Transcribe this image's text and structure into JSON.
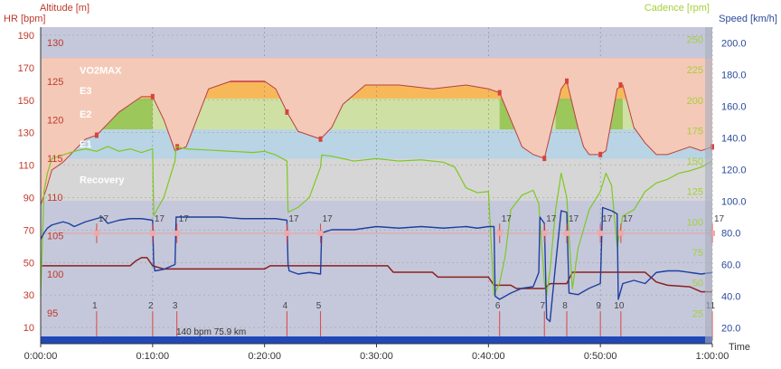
{
  "header": {
    "altitude_label": "Altitude [m]",
    "hr_label": "HR [bpm]",
    "cadence_label": "Cadence [rpm]",
    "speed_label": "Speed [km/h]",
    "time_label": "Time"
  },
  "summary_text": "140 bpm 75.9 km",
  "colors": {
    "hr": "#8b1f1f",
    "cadence": "#7ec820",
    "speed": "#1e3fa0",
    "altitude_fill": "#f4c9b8",
    "altitude_line": "#b94040",
    "hr_axis_text": "#c0392b",
    "cadence_axis_text": "#a6cf3a",
    "speed_axis_text": "#2a4a9a",
    "progress": "#2048b8"
  },
  "chart_data": {
    "type": "line",
    "x_unit": "h:mm:ss",
    "xlim": [
      "0:00:00",
      "1:00:00"
    ],
    "x_ticks": [
      "0:00:00",
      "0:10:00",
      "0:20:00",
      "0:30:00",
      "0:40:00",
      "0:50:00",
      "1:00:00"
    ],
    "axes": {
      "hr": {
        "label": "HR [bpm]",
        "ylim": [
          0,
          195
        ],
        "ticks": [
          "10",
          "30",
          "50",
          "70",
          "90",
          "110",
          "130",
          "150",
          "170",
          "190"
        ]
      },
      "altitude": {
        "label": "Altitude [m]",
        "ylim": [
          91,
          132
        ],
        "ticks": [
          "95",
          "100",
          "105",
          "110",
          "115",
          "120",
          "125",
          "130"
        ]
      },
      "cadence": {
        "label": "Cadence [rpm]",
        "ylim": [
          0,
          260
        ],
        "ticks": [
          "25",
          "50",
          "75",
          "100",
          "125",
          "150",
          "175",
          "200",
          "225",
          "250"
        ]
      },
      "speed": {
        "label": "Speed [km/h]",
        "ylim": [
          10,
          210
        ],
        "ticks": [
          "20.0",
          "40.0",
          "60.0",
          "80.0",
          "100.0",
          "120.0",
          "140.0",
          "160.0",
          "180.0",
          "200.0"
        ]
      }
    },
    "hr_zones": [
      {
        "name": "Recovery",
        "from": 88,
        "to": 114,
        "color": "#d6d6d6"
      },
      {
        "name": "E1",
        "from": 114,
        "to": 132,
        "color": "#b9d4e4"
      },
      {
        "name": "E2",
        "from": 132,
        "to": 151,
        "color": "#cfe0a4"
      },
      {
        "name": "E3",
        "from": 151,
        "to": 161,
        "color": "#f7b85a"
      },
      {
        "name": "VO2MAX",
        "from": 161,
        "to": 176,
        "color": "#e8584c"
      }
    ],
    "green_band": {
      "from": 132,
      "to": 151,
      "color": "#9cc75a",
      "segments": [
        [
          "0:01:00",
          "0:10:00"
        ],
        [
          "0:41:00",
          "0:44:30"
        ],
        [
          "0:46:00",
          "0:48:30"
        ],
        [
          "0:49:30",
          "0:52:00"
        ],
        [
          "0:53:00",
          "1:00:00"
        ]
      ]
    },
    "series": [
      {
        "name": "Altitude",
        "axis": "altitude",
        "x_minutes": [
          0,
          0.5,
          1,
          2,
          3,
          4,
          5,
          6,
          7,
          8,
          9,
          10,
          11,
          12,
          13,
          15,
          17,
          20,
          21,
          22,
          23,
          24,
          25,
          26,
          27,
          29,
          32,
          35,
          38,
          40,
          41,
          42,
          43,
          44,
          45,
          45.5,
          46,
          46.5,
          47,
          48,
          48.5,
          49,
          50,
          50.5,
          51,
          51.5,
          52,
          53,
          54,
          55,
          56,
          57,
          58,
          59,
          60
        ],
        "values": [
          109,
          111,
          113.5,
          114.5,
          116,
          117.5,
          118,
          119.5,
          121,
          122,
          123,
          123,
          120,
          116,
          116.5,
          124,
          125,
          125,
          124,
          121,
          118.5,
          118,
          117.5,
          119,
          122,
          124.5,
          124.5,
          124,
          124.5,
          124,
          123.5,
          120,
          116.5,
          115.5,
          115,
          118,
          121,
          124,
          125,
          119,
          116.5,
          115.5,
          115.5,
          116,
          120,
          124,
          124.5,
          119,
          117,
          115.5,
          115.5,
          116,
          116.5,
          116,
          116.5
        ]
      },
      {
        "name": "Speed",
        "axis": "speed",
        "x_minutes": [
          0,
          0.3,
          0.6,
          1,
          1.5,
          2,
          2.5,
          3,
          4,
          5,
          5.5,
          6,
          7,
          8,
          9,
          10,
          10.1,
          10.2,
          11,
          12,
          12.1,
          12.5,
          14,
          16,
          18,
          20,
          21,
          22,
          22.1,
          22.2,
          23,
          24,
          25,
          25.1,
          26,
          28,
          30,
          32,
          34,
          36,
          38,
          39,
          40,
          40.5,
          40.6,
          41,
          41.5,
          42,
          43,
          44,
          44.5,
          44.6,
          45,
          45.2,
          45.5,
          46,
          46.5,
          47,
          47.2,
          48,
          49,
          50,
          50.2,
          51,
          51.5,
          51.6,
          52,
          53,
          54,
          55,
          56,
          57,
          58,
          59,
          60
        ],
        "values": [
          76,
          80,
          83,
          85,
          86,
          87,
          86,
          84,
          87,
          89,
          90,
          86,
          88,
          89,
          89,
          88,
          60,
          56,
          57,
          60,
          90,
          90,
          90,
          90,
          89,
          89,
          89,
          88,
          60,
          56,
          54,
          55,
          54,
          80,
          82,
          82,
          84,
          83,
          84,
          83,
          84,
          83,
          84,
          84,
          40,
          38,
          40,
          42,
          45,
          46,
          55,
          90,
          86,
          26,
          24,
          60,
          94,
          93,
          42,
          41,
          45,
          48,
          96,
          94,
          92,
          38,
          48,
          50,
          48,
          55,
          56,
          56,
          55,
          54,
          55
        ]
      },
      {
        "name": "Cadence",
        "axis": "cadence",
        "x_minutes": [
          0,
          0.3,
          0.6,
          1,
          2,
          3,
          4,
          5,
          6,
          7,
          8,
          9,
          10,
          10.1,
          10.5,
          11,
          12,
          12.1,
          13,
          15,
          17,
          19,
          20,
          21,
          22,
          22.1,
          23,
          24,
          25,
          25.1,
          26,
          28,
          30,
          32,
          34,
          36,
          37,
          38,
          39,
          40,
          40.5,
          41,
          41.5,
          42,
          43,
          44,
          44.5,
          45,
          45.2,
          45.5,
          46,
          46.5,
          47,
          47.5,
          48,
          49,
          50,
          50.5,
          51,
          51.5,
          52,
          53,
          54,
          55,
          56,
          57,
          58,
          59,
          60
        ],
        "values": [
          40,
          125,
          140,
          152,
          155,
          158,
          160,
          158,
          162,
          158,
          160,
          157,
          160,
          105,
          112,
          120,
          150,
          162,
          160,
          159,
          158,
          157,
          158,
          155,
          150,
          108,
          112,
          120,
          145,
          155,
          154,
          150,
          152,
          150,
          151,
          149,
          145,
          128,
          124,
          125,
          40,
          50,
          72,
          110,
          122,
          126,
          115,
          50,
          40,
          60,
          110,
          140,
          120,
          45,
          78,
          110,
          125,
          140,
          130,
          80,
          105,
          110,
          125,
          132,
          135,
          140,
          142,
          145,
          150
        ]
      },
      {
        "name": "HR",
        "axis": "hr",
        "x_minutes": [
          0,
          3,
          8,
          8.5,
          9,
          9.5,
          10,
          11,
          12,
          20,
          20.5,
          31,
          31.5,
          35,
          35.5,
          40,
          40.5,
          42,
          42.5,
          45,
          45.5,
          47,
          47.5,
          54,
          54.5,
          55,
          56,
          58,
          59,
          60
        ],
        "values": [
          48,
          48,
          48,
          51,
          53,
          53,
          48,
          46,
          46,
          46,
          48,
          48,
          44,
          44,
          41,
          41,
          36,
          36,
          34,
          34,
          37,
          37,
          44,
          44,
          41,
          38,
          36,
          35,
          32,
          32
        ]
      }
    ],
    "laps": [
      {
        "label": "1",
        "time": "0:05:00",
        "hr_value": 17
      },
      {
        "label": "2",
        "time": "0:10:00",
        "hr_value": 17
      },
      {
        "label": "3",
        "time": "0:12:10",
        "hr_value": 17
      },
      {
        "label": "4",
        "time": "0:22:00",
        "hr_value": 17
      },
      {
        "label": "5",
        "time": "0:25:00",
        "hr_value": 17
      },
      {
        "label": "6",
        "time": "0:41:00",
        "hr_value": 17
      },
      {
        "label": "7",
        "time": "0:45:00",
        "hr_value": 17
      },
      {
        "label": "8",
        "time": "0:47:00",
        "hr_value": 17
      },
      {
        "label": "9",
        "time": "0:50:00",
        "hr_value": 17
      },
      {
        "label": "10",
        "time": "0:51:50",
        "hr_value": 17
      },
      {
        "label": "11",
        "time": "1:00:00",
        "hr_value": 17
      }
    ],
    "average_hr_line": {
      "value": 68,
      "color": "#e8a0a0"
    },
    "grid": true
  }
}
